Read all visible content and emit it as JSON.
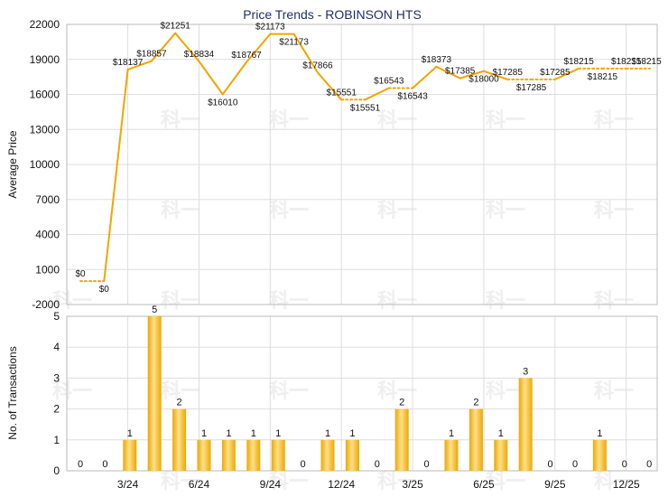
{
  "chart_data": {
    "title": "Price Trends - ROBINSON HTS",
    "watermark": "科一",
    "colors": {
      "line": "#f5a300",
      "bar_light": "#ffe08a",
      "bar_dark": "#eca800",
      "grid": "#dddddd",
      "title": "#1f2f66"
    },
    "price_chart": {
      "type": "line",
      "ylabel": "Average Price",
      "ylim": [
        -2000,
        22000
      ],
      "yticks": [
        -2000,
        1000,
        4000,
        7000,
        10000,
        13000,
        16000,
        19000,
        22000
      ],
      "x": [
        0,
        1,
        2,
        3,
        4,
        5,
        6,
        7,
        8,
        9,
        10,
        11,
        12,
        13,
        14,
        15,
        16,
        17,
        18,
        19,
        20,
        21,
        22,
        23,
        24
      ],
      "values": [
        0,
        0,
        18137,
        18857,
        21251,
        18834,
        16010,
        18767,
        21173,
        21173,
        17866,
        15551,
        15551,
        16543,
        16543,
        18373,
        17385,
        18000,
        17285,
        17285,
        17285,
        18215,
        18215,
        18215,
        18215
      ],
      "labels": [
        "$0",
        "$0",
        "$18137",
        "$18857",
        "$21251",
        "$18834",
        "$16010",
        "$18767",
        "$21173",
        "$21173",
        "$17866",
        "$15551",
        "$15551",
        "$16543",
        "$16543",
        "$18373",
        "$17385",
        "$18000",
        "$17285",
        "$17285",
        "$17285",
        "$18215",
        "$18215",
        "$18215",
        "$18215"
      ],
      "dotted_segments": [
        [
          0,
          1
        ],
        [
          11,
          12
        ],
        [
          13,
          14
        ],
        [
          18,
          19
        ],
        [
          19,
          20
        ],
        [
          21,
          22
        ],
        [
          22,
          23
        ],
        [
          23,
          24
        ]
      ]
    },
    "volume_chart": {
      "type": "bar",
      "ylabel": "No. of Transactions",
      "ylim": [
        0,
        5
      ],
      "yticks": [
        0,
        1,
        2,
        3,
        4,
        5
      ],
      "values": [
        0,
        0,
        1,
        5,
        2,
        1,
        1,
        1,
        1,
        0,
        1,
        1,
        0,
        2,
        0,
        1,
        2,
        1,
        3,
        0,
        0,
        1,
        0,
        0
      ],
      "labels": [
        "0",
        "0",
        "1",
        "5",
        "2",
        "1",
        "1",
        "1",
        "1",
        "0",
        "1",
        "1",
        "0",
        "2",
        "0",
        "1",
        "2",
        "1",
        "3",
        "0",
        "0",
        "1",
        "0",
        "0"
      ]
    },
    "xticks": [
      {
        "pos": 2,
        "label": "3/24"
      },
      {
        "pos": 5,
        "label": "6/24"
      },
      {
        "pos": 8,
        "label": "9/24"
      },
      {
        "pos": 11,
        "label": "12/24"
      },
      {
        "pos": 14,
        "label": "3/25"
      },
      {
        "pos": 17,
        "label": "6/25"
      },
      {
        "pos": 20,
        "label": "9/25"
      },
      {
        "pos": 23,
        "label": "12/25"
      }
    ]
  }
}
